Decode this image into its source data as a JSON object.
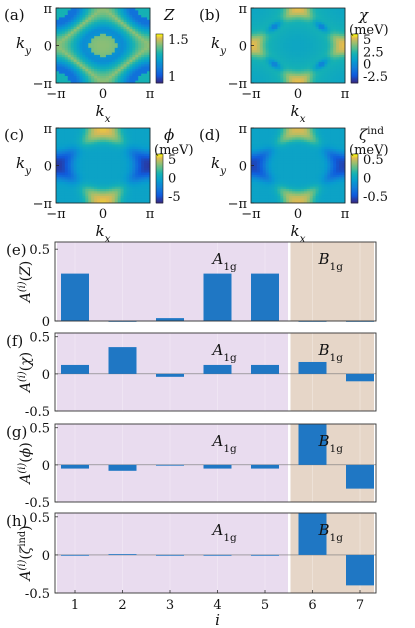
{
  "colors": {
    "bar": "#1f77c4",
    "a1g_band": "#e9dcef",
    "b1g_band": "#e6d6c8",
    "a1g_text": "#9b6fb3",
    "b1g_text": "#a87c55",
    "axis": "#333333"
  },
  "heatmaps": [
    {
      "panel_label": "(a)",
      "quantity": "Z",
      "unit": "",
      "ylabel": "k",
      "ylabel_sub": "y",
      "xlabel": "k",
      "xlabel_sub": "x",
      "xticks": [
        "−π",
        "0",
        "π"
      ],
      "yticks": [
        "π",
        "0",
        "−π"
      ],
      "colorbar_ticks": [
        "1.5",
        "1"
      ],
      "pattern": "diamond-high"
    },
    {
      "panel_label": "(b)",
      "quantity": "χ",
      "unit": "(meV)",
      "ylabel": "k",
      "ylabel_sub": "y",
      "xlabel": "k",
      "xlabel_sub": "x",
      "xticks": [
        "−π",
        "0",
        "π"
      ],
      "yticks": [
        "π",
        "0",
        "−π"
      ],
      "colorbar_ticks": [
        "5",
        "2.5",
        "0",
        "-2.5"
      ],
      "pattern": "diamond-edge"
    },
    {
      "panel_label": "(c)",
      "quantity": "ϕ",
      "unit": "(meV)",
      "ylabel": "k",
      "ylabel_sub": "y",
      "xlabel": "k",
      "xlabel_sub": "x",
      "xticks": [
        "−π",
        "0",
        "π"
      ],
      "yticks": [
        "π",
        "0",
        "−π"
      ],
      "colorbar_ticks": [
        "5",
        "0",
        "-5"
      ],
      "pattern": "dwave"
    },
    {
      "panel_label": "(d)",
      "quantity": "ζ",
      "quantity_sup": "ind",
      "unit": "(meV)",
      "ylabel": "k",
      "ylabel_sub": "y",
      "xlabel": "k",
      "xlabel_sub": "x",
      "xticks": [
        "−π",
        "0",
        "π"
      ],
      "yticks": [
        "π",
        "0",
        "−π"
      ],
      "colorbar_ticks": [
        "0.5",
        "0",
        "-0.5"
      ],
      "pattern": "dwave-weak"
    }
  ],
  "chart_data": [
    {
      "type": "bar",
      "panel_label": "(e)",
      "ylabel": "A(i)(Z)",
      "categories": [
        1,
        2,
        3,
        4,
        5,
        6,
        7
      ],
      "values": [
        0.33,
        0.0,
        0.02,
        0.33,
        0.33,
        0.0,
        0.0
      ],
      "ylim": [
        0,
        0.55
      ],
      "yticks": [
        "0.5",
        "0"
      ],
      "bands": [
        {
          "name": "A1g",
          "from": 1,
          "to": 5
        },
        {
          "name": "B1g",
          "from": 6,
          "to": 7
        }
      ]
    },
    {
      "type": "bar",
      "panel_label": "(f)",
      "ylabel": "A(i)(χ)",
      "categories": [
        1,
        2,
        3,
        4,
        5,
        6,
        7
      ],
      "values": [
        0.12,
        0.36,
        -0.04,
        0.12,
        0.12,
        0.16,
        -0.1
      ],
      "ylim": [
        -0.5,
        0.55
      ],
      "yticks": [
        "0.5",
        "0",
        "-0.5"
      ],
      "bands": [
        {
          "name": "A1g",
          "from": 1,
          "to": 5
        },
        {
          "name": "B1g",
          "from": 6,
          "to": 7
        }
      ]
    },
    {
      "type": "bar",
      "panel_label": "(g)",
      "ylabel": "A(i)(ϕ)",
      "categories": [
        1,
        2,
        3,
        4,
        5,
        6,
        7
      ],
      "values": [
        -0.05,
        -0.08,
        0.0,
        -0.05,
        -0.05,
        0.55,
        -0.32
      ],
      "ylim": [
        -0.5,
        0.55
      ],
      "yticks": [
        "0.5",
        "0",
        "-0.5"
      ],
      "bands": [
        {
          "name": "A1g",
          "from": 1,
          "to": 5
        },
        {
          "name": "B1g",
          "from": 6,
          "to": 7
        }
      ]
    },
    {
      "type": "bar",
      "panel_label": "(h)",
      "ylabel": "A(i)(ζind)",
      "categories": [
        1,
        2,
        3,
        4,
        5,
        6,
        7
      ],
      "values": [
        -0.01,
        0.01,
        0.0,
        -0.01,
        -0.01,
        0.55,
        -0.4
      ],
      "ylim": [
        -0.5,
        0.55
      ],
      "yticks": [
        "0.5",
        "0",
        "-0.5"
      ],
      "bands": [
        {
          "name": "A1g",
          "from": 1,
          "to": 5
        },
        {
          "name": "B1g",
          "from": 6,
          "to": 7
        }
      ]
    }
  ],
  "band_labels": {
    "a1g": "A",
    "a1g_sub": "1g",
    "b1g": "B",
    "b1g_sub": "1g"
  },
  "xaxis": {
    "label": "i",
    "ticks": [
      "1",
      "2",
      "3",
      "4",
      "5",
      "6",
      "7"
    ]
  }
}
